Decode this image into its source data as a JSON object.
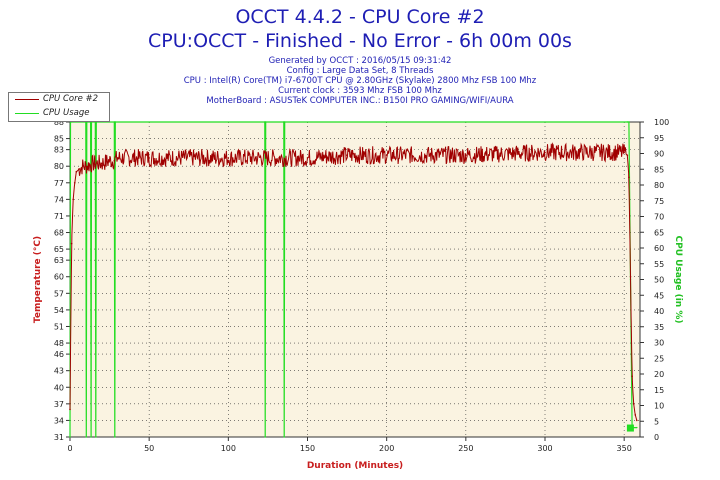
{
  "header": {
    "title": "OCCT 4.4.2 - CPU Core #2",
    "subtitle": "CPU:OCCT - Finished - No Error - 6h 00m 00s",
    "info_lines": [
      "Generated by OCCT : 2016/05/15 09:31:42",
      "Config : Large Data Set, 8 Threads",
      "CPU : Intel(R) Core(TM) i7-6700T CPU @ 2.80GHz (Skylake) 2800 Mhz FSB 100 Mhz",
      "Current clock : 3593 Mhz FSB 100 Mhz",
      "MotherBoard : ASUSTeK COMPUTER INC.: B150I PRO GAMING/WIFI/AURA"
    ]
  },
  "legend": {
    "items": [
      {
        "label": "CPU Core #2",
        "color": "#a00000"
      },
      {
        "label": "CPU Usage",
        "color": "#22dd22"
      }
    ]
  },
  "chart_data": {
    "type": "line",
    "xlabel": "Duration (Minutes)",
    "ylabel": "Temperature (°C)",
    "ylabel_right": "CPU Usage (in %)",
    "xlim": [
      0,
      360
    ],
    "ylim": [
      31,
      88
    ],
    "ylim_right": [
      0,
      100
    ],
    "x_ticks": [
      0,
      50,
      100,
      150,
      200,
      250,
      300,
      350
    ],
    "y_ticks": [
      31,
      34,
      37,
      40,
      43,
      46,
      48,
      51,
      54,
      57,
      60,
      63,
      65,
      68,
      71,
      74,
      77,
      80,
      83,
      85,
      88
    ],
    "y_ticks_right": [
      0,
      5,
      10,
      15,
      20,
      25,
      30,
      35,
      40,
      45,
      50,
      55,
      60,
      65,
      70,
      75,
      80,
      85,
      90,
      95,
      100
    ],
    "plot_background": "#faf3e1",
    "series": [
      {
        "name": "CPU Core #2",
        "axis": "left",
        "color": "#a00000",
        "x": [
          0,
          1,
          2,
          3,
          4,
          6,
          8,
          10,
          15,
          20,
          25,
          28,
          30,
          50,
          100,
          150,
          175,
          200,
          250,
          300,
          350,
          352,
          353,
          354,
          355,
          356,
          357,
          358
        ],
        "y": [
          36,
          66,
          74,
          77,
          79,
          79.5,
          80,
          80,
          80.5,
          80.5,
          81,
          81,
          81.5,
          81.5,
          81.5,
          81.5,
          82,
          82,
          82,
          82.5,
          82.5,
          82,
          78,
          60,
          42,
          37,
          35,
          34
        ]
      },
      {
        "name": "CPU Usage",
        "axis": "right",
        "color": "#22dd22",
        "x": [
          0,
          0.3,
          0.6,
          10,
          10.3,
          10.6,
          13,
          13.3,
          13.6,
          16,
          16.3,
          16.6,
          28,
          28.3,
          28.6,
          123,
          123.3,
          123.6,
          135,
          135.3,
          135.6,
          352,
          353,
          354,
          355,
          358
        ],
        "y": [
          0,
          100,
          100,
          100,
          0,
          100,
          100,
          0,
          100,
          100,
          0,
          100,
          100,
          0,
          100,
          100,
          0,
          100,
          100,
          0,
          100,
          100,
          100,
          50,
          3,
          3
        ]
      }
    ]
  }
}
